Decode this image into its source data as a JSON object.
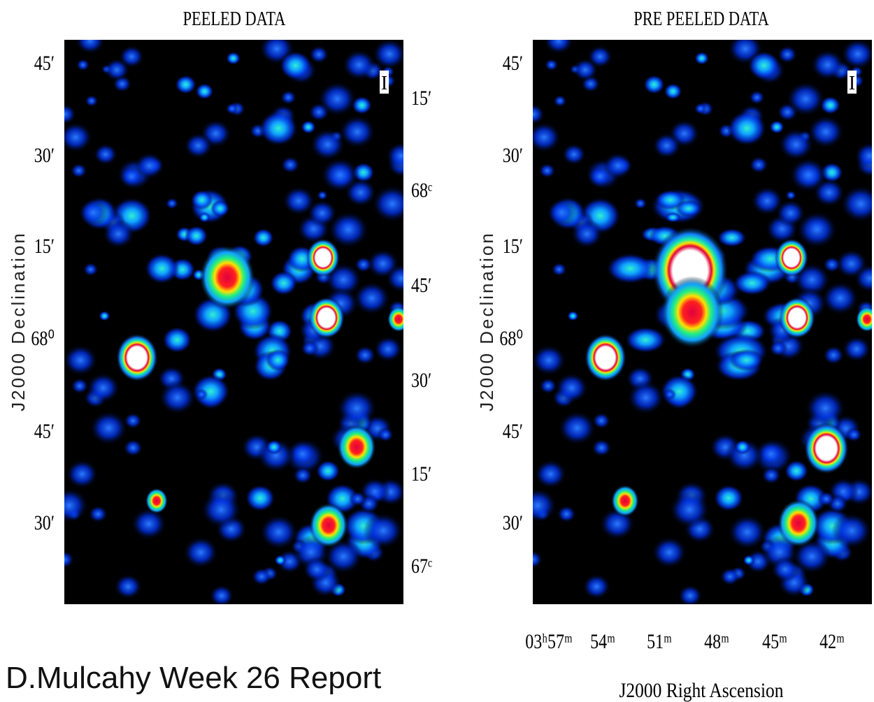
{
  "panels": [
    {
      "title": "PEELED DATA",
      "stokes": "I",
      "left_ticks": [
        "45′",
        "30′",
        "15′",
        "68⁰",
        "45′",
        "30′"
      ],
      "y_label": "J2000 Declination",
      "right_ticks": [
        "15′",
        "68ᶜ",
        "45′",
        "30′",
        "15′",
        "67ᶜ"
      ]
    },
    {
      "title": "PRE PEELED DATA",
      "stokes": "I",
      "left_ticks": [
        "45′",
        "30′",
        "15′",
        "68⁰",
        "45′",
        "30′"
      ],
      "y_label": "J2000 Declination",
      "x_ticks": [
        "03ʰ57ᵐ",
        "54ᵐ",
        "51ᵐ",
        "48ᵐ",
        "45ᵐ",
        "42ᵐ"
      ],
      "x_label": "J2000 Right Ascension"
    }
  ],
  "footer": "D.Mulcahy Week 26 Report"
}
